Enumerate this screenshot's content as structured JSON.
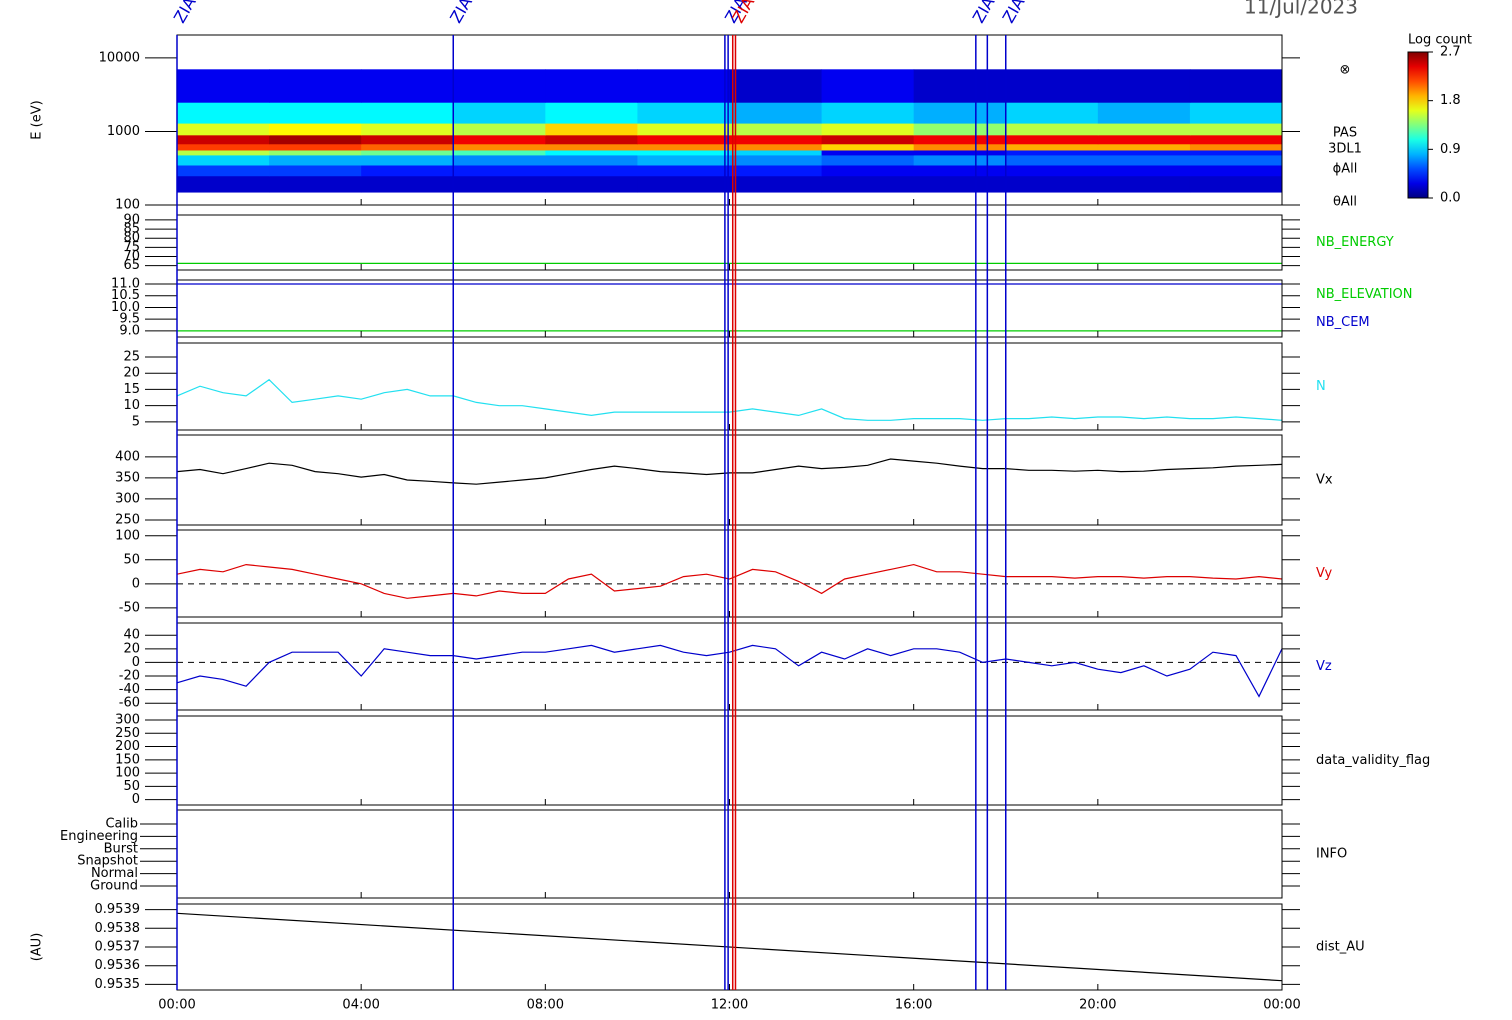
{
  "header": {
    "date": "11/Jul/2023"
  },
  "time": {
    "xlim": [
      0,
      24
    ],
    "xticks": [
      {
        "value": 0,
        "label": "00:00"
      },
      {
        "value": 4,
        "label": "04:00"
      },
      {
        "value": 8,
        "label": "08:00"
      },
      {
        "value": 12,
        "label": "12:00"
      },
      {
        "value": 16,
        "label": "16:00"
      },
      {
        "value": 20,
        "label": "20:00"
      },
      {
        "value": 24,
        "label": "00:00"
      }
    ],
    "x": [
      0,
      0.5,
      1,
      1.5,
      2,
      2.5,
      3,
      3.5,
      4,
      4.5,
      5,
      5.5,
      6,
      6.5,
      7,
      7.5,
      8,
      8.5,
      9,
      9.5,
      10,
      10.5,
      11,
      11.5,
      12,
      12.5,
      13,
      13.5,
      14,
      14.5,
      15,
      15.5,
      16,
      16.5,
      17,
      17.5,
      18,
      18.5,
      19,
      19.5,
      20,
      20.5,
      21,
      21.5,
      22,
      22.5,
      23,
      23.5,
      24
    ]
  },
  "events": [
    {
      "x": 0,
      "color": "#0000cc",
      "label": "ZIAS"
    },
    {
      "x": 6,
      "color": "#0000cc",
      "label": "ZIAS"
    },
    {
      "x": 11.9,
      "color": "#0000cc"
    },
    {
      "x": 11.97,
      "color": "#0000cc",
      "label": "ZIAS"
    },
    {
      "x": 12.07,
      "color": "#dd0000"
    },
    {
      "x": 12.13,
      "color": "#dd0000",
      "label": "ZIAS"
    },
    {
      "x": 17.35,
      "color": "#0000cc",
      "label": "ZIAS"
    },
    {
      "x": 17.6,
      "color": "#0000cc"
    },
    {
      "x": 18,
      "color": "#0000cc",
      "label": "ZIAS"
    }
  ],
  "colorbar": {
    "title": "Log count",
    "lim": [
      0,
      2.7
    ],
    "ticks": [
      {
        "value": 0,
        "label": "0.0"
      },
      0.9,
      1.8,
      2.7
    ]
  },
  "chart_data": [
    {
      "type": "spectrogram",
      "ylabel": "E (eV)",
      "log": true,
      "ylim": [
        100,
        20500
      ],
      "yticks": [
        100,
        1000,
        10000
      ],
      "side_labels": [
        "⊗",
        "PAS",
        "3DL1",
        "ϕAll",
        "θAll"
      ],
      "x_edges": [
        0,
        2,
        4,
        6,
        8,
        10,
        12,
        14,
        16,
        18,
        20,
        22,
        24
      ],
      "energy_edges": [
        150,
        250,
        350,
        480,
        560,
        680,
        900,
        1300,
        2500,
        7000
      ],
      "z": [
        [
          0.2,
          0.2,
          0.2,
          0.2,
          0.2,
          0.2,
          0.2,
          0.2,
          0.2,
          0.2,
          0.2,
          0.2
        ],
        [
          0.5,
          0.5,
          0.4,
          0.4,
          0.4,
          0.4,
          0.4,
          0.3,
          0.3,
          0.3,
          0.3,
          0.3
        ],
        [
          0.9,
          0.8,
          0.8,
          0.7,
          0.7,
          0.8,
          0.7,
          0.6,
          0.7,
          0.6,
          0.6,
          0.6
        ],
        [
          1.5,
          1.4,
          1.3,
          1.2,
          1.0,
          1.0,
          0.9,
          0.3,
          0.3,
          0.4,
          0.4,
          0.4
        ],
        [
          2.2,
          2.2,
          2.1,
          2.0,
          2.0,
          2.0,
          2.0,
          1.8,
          2.0,
          1.9,
          1.9,
          2.0
        ],
        [
          2.5,
          2.6,
          2.5,
          2.4,
          2.5,
          2.4,
          2.4,
          2.5,
          2.4,
          2.4,
          2.4,
          2.4
        ],
        [
          1.6,
          1.7,
          1.6,
          1.5,
          1.8,
          1.6,
          1.5,
          1.6,
          1.4,
          1.5,
          1.5,
          1.5
        ],
        [
          1.0,
          1.0,
          1.0,
          0.9,
          1.0,
          0.9,
          0.8,
          0.9,
          0.8,
          0.9,
          0.8,
          0.9
        ],
        [
          0.3,
          0.3,
          0.3,
          0.3,
          0.3,
          0.3,
          0.2,
          0.3,
          0.2,
          0.2,
          0.2,
          0.2
        ]
      ]
    },
    {
      "type": "line",
      "ylim": [
        62.6,
        92.7
      ],
      "yticks": [
        65,
        70,
        75,
        80,
        85,
        90
      ],
      "x": [
        0,
        24
      ],
      "series": [
        {
          "name": "NB_ENERGY",
          "color": "#00cc00",
          "values": [
            66.2,
            66.2
          ]
        }
      ]
    },
    {
      "type": "line",
      "ylim": [
        8.74,
        11.17
      ],
      "yticks": [
        {
          "value": 9,
          "label": "9.0"
        },
        9.5,
        {
          "value": 10,
          "label": "10.0"
        },
        10.5,
        {
          "value": 11,
          "label": "11.0"
        }
      ],
      "x": [
        0,
        24
      ],
      "series": [
        {
          "name": "NB_ELEVATION",
          "color": "#00cc00",
          "values": [
            9,
            9
          ]
        },
        {
          "name": "NB_CEM",
          "color": "#0000cc",
          "values": [
            11,
            11
          ]
        }
      ]
    },
    {
      "type": "line",
      "ylim": [
        2.5,
        29.3
      ],
      "yticks": [
        5,
        10,
        15,
        20,
        25
      ],
      "series": [
        {
          "name": "N",
          "color": "#22e0f0",
          "values": [
            13,
            16,
            14,
            13,
            18,
            11,
            12,
            13,
            12,
            14,
            15,
            13,
            13,
            11,
            10,
            10,
            9,
            8,
            7,
            8,
            8,
            8,
            8,
            8,
            8,
            9,
            8,
            7,
            9,
            6,
            5.5,
            5.5,
            6,
            6,
            6,
            5.5,
            6,
            6,
            6.5,
            6,
            6.5,
            6.5,
            6,
            6.5,
            6,
            6,
            6.5,
            6,
            5.5
          ]
        }
      ]
    },
    {
      "type": "line",
      "ylim": [
        238,
        452
      ],
      "yticks": [
        250,
        300,
        350,
        400
      ],
      "series": [
        {
          "name": "Vx",
          "color": "#000000",
          "values": [
            365,
            370,
            360,
            372,
            385,
            380,
            365,
            360,
            352,
            358,
            345,
            342,
            338,
            335,
            340,
            345,
            350,
            360,
            370,
            378,
            372,
            365,
            362,
            358,
            362,
            362,
            370,
            378,
            372,
            375,
            380,
            395,
            390,
            385,
            378,
            372,
            372,
            368,
            368,
            366,
            368,
            365,
            366,
            370,
            372,
            374,
            378,
            380,
            382
          ]
        }
      ]
    },
    {
      "type": "line",
      "ylim": [
        -69,
        112
      ],
      "yticks": [
        -50,
        0,
        50,
        100
      ],
      "dashed_zero": true,
      "series": [
        {
          "name": "Vy",
          "color": "#dd0000",
          "values": [
            20,
            30,
            25,
            40,
            35,
            30,
            20,
            10,
            0,
            -20,
            -30,
            -25,
            -20,
            -25,
            -15,
            -20,
            -20,
            10,
            20,
            -15,
            -10,
            -5,
            15,
            20,
            10,
            30,
            25,
            5,
            -20,
            10,
            20,
            30,
            40,
            25,
            25,
            20,
            15,
            15,
            15,
            12,
            15,
            15,
            12,
            15,
            15,
            12,
            10,
            15,
            10
          ]
        }
      ]
    },
    {
      "type": "line",
      "ylim": [
        -70,
        58
      ],
      "yticks": [
        -60,
        -40,
        -20,
        0,
        20,
        40
      ],
      "dashed_zero": true,
      "series": [
        {
          "name": "Vz",
          "color": "#0000cc",
          "values": [
            -30,
            -20,
            -25,
            -35,
            0,
            15,
            15,
            15,
            -20,
            20,
            15,
            10,
            10,
            5,
            10,
            15,
            15,
            20,
            25,
            15,
            20,
            25,
            15,
            10,
            15,
            25,
            20,
            -5,
            15,
            5,
            20,
            10,
            20,
            20,
            15,
            0,
            5,
            0,
            -5,
            0,
            -10,
            -15,
            -5,
            -20,
            -10,
            15,
            10,
            -50,
            20
          ]
        }
      ]
    },
    {
      "type": "line",
      "label": "data_validity_flag",
      "ylim": [
        -20,
        315
      ],
      "yticks": [
        0,
        50,
        100,
        150,
        200,
        250,
        300
      ],
      "series": []
    },
    {
      "type": "category",
      "label": "INFO",
      "categories": [
        "Calib",
        "Engineering",
        "Burst",
        "Snapshot",
        "Normal",
        "Ground"
      ]
    },
    {
      "type": "line",
      "ylabel": "(AU)",
      "ylim": [
        0.95347,
        0.95393
      ],
      "yticks": [
        0.9535,
        0.9536,
        0.9537,
        0.9538,
        0.9539
      ],
      "x": [
        0,
        24
      ],
      "series": [
        {
          "name": "dist_AU",
          "color": "#000000",
          "values": [
            0.95388,
            0.95352
          ]
        }
      ]
    }
  ]
}
